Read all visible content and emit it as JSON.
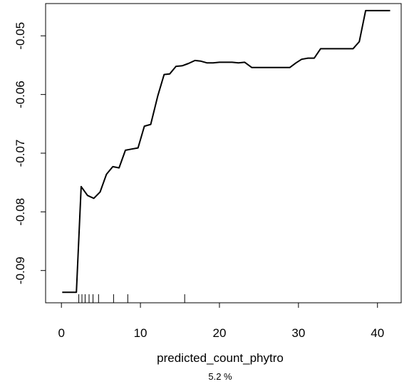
{
  "chart_data": {
    "type": "line",
    "xlabel": "predicted_count_phytro",
    "subtitle": "5.2 %",
    "ylabel": "",
    "xlim": [
      -2,
      43
    ],
    "ylim": [
      -0.0955,
      -0.0445
    ],
    "x_ticks": [
      0,
      10,
      20,
      30,
      40
    ],
    "x_tick_labels": [
      "0",
      "10",
      "20",
      "30",
      "40"
    ],
    "y_ticks": [
      -0.09,
      -0.08,
      -0.07,
      -0.06,
      -0.05
    ],
    "y_tick_labels": [
      "-0.09",
      "-0.08",
      "-0.07",
      "-0.06",
      "-0.05"
    ],
    "grid": false,
    "legend": "none",
    "series": [
      {
        "x": [
          0.1,
          1.9,
          2.5,
          3.3,
          4.1,
          4.9,
          5.7,
          6.5,
          7.3,
          8.1,
          8.9,
          9.7,
          10.5,
          11.3,
          12.2,
          13.0,
          13.7,
          14.5,
          15.3,
          16.1,
          16.9,
          17.6,
          18.4,
          19.2,
          20.0,
          20.8,
          21.6,
          22.4,
          23.2,
          24.1,
          24.9,
          25.7,
          26.5,
          27.3,
          28.1,
          28.9,
          29.7,
          30.4,
          31.2,
          32.0,
          32.8,
          33.6,
          34.4,
          35.3,
          36.1,
          36.9,
          37.7,
          38.5,
          39.2,
          40.0,
          40.8,
          41.6
        ],
        "y": [
          -0.0937,
          -0.0937,
          -0.0757,
          -0.0772,
          -0.0777,
          -0.0766,
          -0.0736,
          -0.0723,
          -0.0725,
          -0.0695,
          -0.0693,
          -0.0691,
          -0.0654,
          -0.0651,
          -0.0602,
          -0.0566,
          -0.0565,
          -0.0552,
          -0.0551,
          -0.0547,
          -0.0542,
          -0.0543,
          -0.0546,
          -0.0546,
          -0.0545,
          -0.0545,
          -0.0545,
          -0.0546,
          -0.0545,
          -0.0554,
          -0.0554,
          -0.0554,
          -0.0554,
          -0.0554,
          -0.0554,
          -0.0554,
          -0.0546,
          -0.054,
          -0.0538,
          -0.0538,
          -0.0522,
          -0.0522,
          -0.0522,
          -0.0522,
          -0.0522,
          -0.0522,
          -0.051,
          -0.0457,
          -0.0457,
          -0.0457,
          -0.0457,
          -0.0457
        ]
      }
    ],
    "rug": [
      2.2,
      2.6,
      3.0,
      3.5,
      4.0,
      4.7,
      6.6,
      8.4,
      15.6
    ]
  }
}
